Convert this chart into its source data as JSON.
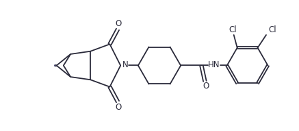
{
  "background_color": "#ffffff",
  "line_color": "#2a2a3a",
  "double_bond_color": "#2a2a3a",
  "alkene_color": "#3a3a6a",
  "line_width": 1.3,
  "font_size": 8.5,
  "figure_width": 4.37,
  "figure_height": 1.91,
  "dpi": 100,
  "xlim": [
    0,
    10.5
  ],
  "ylim": [
    0,
    4.5
  ]
}
